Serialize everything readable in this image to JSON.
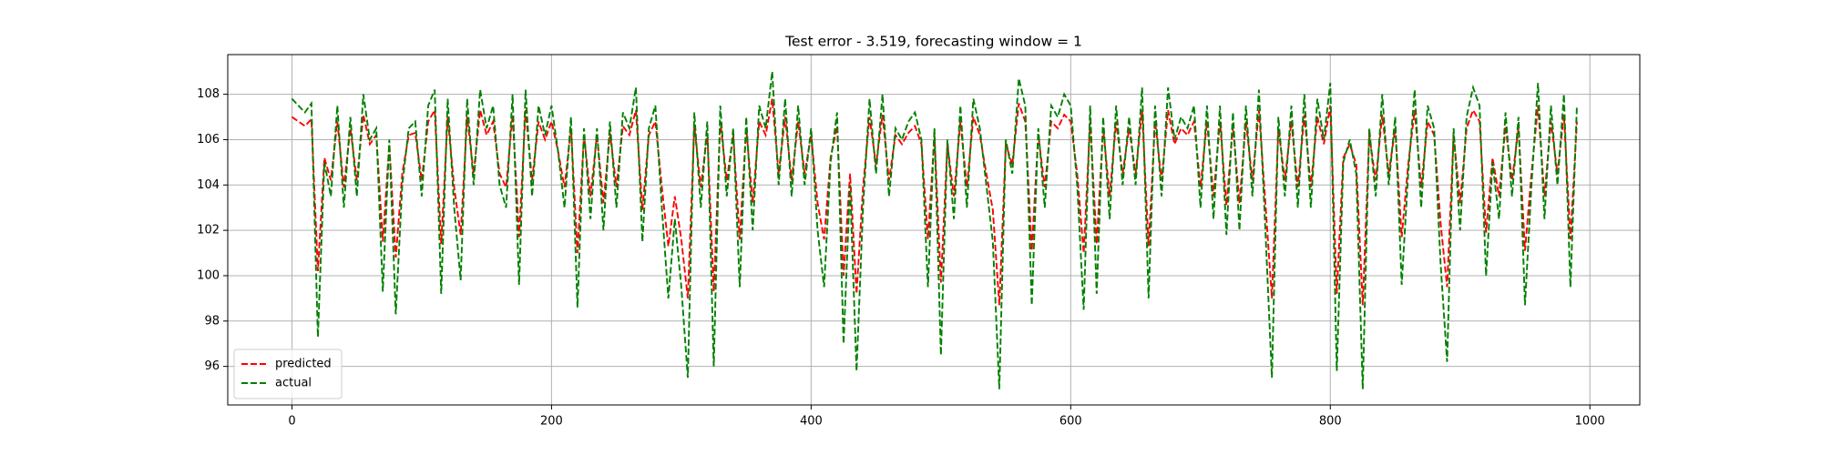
{
  "chart_data": {
    "type": "line",
    "title": "Test error - 3.519, forecasting window = 1",
    "x": [
      0,
      5,
      10,
      15,
      20,
      25,
      30,
      35,
      40,
      45,
      50,
      55,
      60,
      65,
      70,
      75,
      80,
      85,
      90,
      95,
      100,
      105,
      110,
      115,
      120,
      125,
      130,
      135,
      140,
      145,
      150,
      155,
      160,
      165,
      170,
      175,
      180,
      185,
      190,
      195,
      200,
      205,
      210,
      215,
      220,
      225,
      230,
      235,
      240,
      245,
      250,
      255,
      260,
      265,
      270,
      275,
      280,
      285,
      290,
      295,
      300,
      305,
      310,
      315,
      320,
      325,
      330,
      335,
      340,
      345,
      350,
      355,
      360,
      365,
      370,
      375,
      380,
      385,
      390,
      395,
      400,
      405,
      410,
      415,
      420,
      425,
      430,
      435,
      440,
      445,
      450,
      455,
      460,
      465,
      470,
      475,
      480,
      485,
      490,
      495,
      500,
      505,
      510,
      515,
      520,
      525,
      530,
      535,
      540,
      545,
      550,
      555,
      560,
      565,
      570,
      575,
      580,
      585,
      590,
      595,
      600,
      605,
      610,
      615,
      620,
      625,
      630,
      635,
      640,
      645,
      650,
      655,
      660,
      665,
      670,
      675,
      680,
      685,
      690,
      695,
      700,
      705,
      710,
      715,
      720,
      725,
      730,
      735,
      740,
      745,
      750,
      755,
      760,
      765,
      770,
      775,
      780,
      785,
      790,
      795,
      800,
      805,
      810,
      815,
      820,
      825,
      830,
      835,
      840,
      845,
      850,
      855,
      860,
      865,
      870,
      875,
      880,
      885,
      890,
      895,
      900,
      905,
      910,
      915,
      920,
      925,
      930,
      935,
      940,
      945,
      950,
      955,
      960,
      965,
      970,
      975,
      980,
      985,
      990
    ],
    "series": [
      {
        "name": "predicted",
        "color": "#ff0000",
        "values": [
          107.0,
          106.8,
          106.6,
          106.9,
          100.2,
          105.2,
          104.2,
          106.8,
          103.9,
          106.5,
          104.2,
          107.1,
          105.8,
          106.2,
          101.5,
          105.8,
          100.8,
          104.5,
          106.2,
          106.3,
          104.2,
          106.8,
          107.3,
          101.4,
          107.0,
          103.9,
          101.8,
          107.0,
          104.5,
          107.3,
          106.2,
          106.8,
          104.5,
          103.9,
          107.1,
          101.7,
          107.3,
          104.2,
          106.8,
          106.0,
          106.8,
          105.5,
          103.9,
          106.5,
          101.0,
          106.2,
          103.5,
          106.2,
          103.2,
          106.3,
          103.9,
          106.6,
          106.2,
          107.3,
          102.9,
          106.2,
          106.8,
          103.9,
          101.3,
          103.5,
          101.6,
          99.0,
          106.6,
          103.9,
          106.3,
          99.3,
          106.8,
          104.2,
          106.2,
          101.6,
          106.5,
          103.2,
          106.8,
          106.2,
          107.8,
          104.5,
          107.0,
          104.2,
          106.8,
          104.5,
          106.2,
          103.2,
          101.6,
          105.2,
          106.6,
          100.0,
          104.5,
          99.2,
          103.9,
          107.0,
          104.9,
          107.1,
          104.2,
          106.2,
          105.8,
          106.3,
          106.6,
          105.8,
          101.6,
          106.2,
          99.7,
          105.8,
          103.5,
          106.8,
          103.9,
          107.0,
          106.2,
          104.5,
          102.9,
          98.7,
          105.8,
          104.9,
          107.6,
          106.8,
          101.1,
          106.2,
          103.9,
          106.8,
          106.5,
          107.1,
          106.8,
          104.5,
          101.0,
          106.8,
          101.4,
          106.5,
          103.5,
          106.8,
          104.5,
          106.5,
          104.5,
          107.3,
          101.3,
          106.8,
          104.2,
          107.3,
          105.8,
          106.5,
          106.2,
          106.8,
          103.9,
          106.8,
          103.5,
          106.8,
          103.1,
          106.6,
          103.2,
          106.8,
          104.2,
          107.3,
          103.2,
          99.0,
          106.5,
          104.2,
          106.8,
          103.9,
          107.1,
          103.9,
          107.0,
          105.8,
          107.5,
          99.2,
          105.2,
          105.8,
          104.9,
          98.7,
          106.2,
          104.2,
          107.1,
          104.5,
          106.5,
          101.7,
          104.9,
          107.3,
          103.9,
          106.8,
          106.2,
          102.3,
          99.5,
          106.2,
          103.2,
          106.5,
          107.3,
          106.8,
          101.9,
          105.2,
          103.5,
          106.6,
          104.2,
          106.5,
          101.1,
          104.5,
          107.5,
          103.5,
          106.8,
          104.5,
          107.1,
          101.6,
          106.8
        ]
      },
      {
        "name": "actual",
        "color": "#008000",
        "values": [
          107.8,
          107.5,
          107.2,
          107.6,
          97.3,
          105,
          103.5,
          107.5,
          103,
          107,
          103.5,
          108,
          106,
          106.5,
          99.3,
          106,
          98.3,
          104,
          106.5,
          106.8,
          103.5,
          107.5,
          108.2,
          99.2,
          107.8,
          103,
          99.8,
          107.8,
          104,
          108.2,
          106.5,
          107.5,
          104,
          103,
          108,
          99.6,
          108.2,
          103.5,
          107.5,
          106.2,
          107.5,
          105.5,
          103,
          107,
          98.6,
          106.5,
          102.5,
          106.5,
          102,
          106.8,
          103,
          107.2,
          106.5,
          108.3,
          101.5,
          106.5,
          107.5,
          103,
          99,
          102.5,
          99.5,
          95.5,
          107.2,
          103,
          106.8,
          96,
          107.5,
          103.5,
          106.5,
          99.5,
          107,
          102,
          107.5,
          106.5,
          109,
          104,
          107.8,
          103.5,
          107.5,
          104,
          106.5,
          102,
          99.5,
          105,
          107.2,
          97,
          104,
          95.8,
          103,
          107.8,
          104.5,
          108,
          103.5,
          106.5,
          106,
          106.8,
          107.2,
          106,
          99.5,
          106.5,
          96.5,
          106,
          102.5,
          107.5,
          103,
          107.8,
          106.5,
          104,
          101.5,
          95,
          106,
          104.5,
          108.7,
          107.5,
          98.7,
          106.5,
          103,
          107.5,
          107,
          108,
          107.5,
          104,
          98.5,
          107.5,
          99.2,
          107,
          102.5,
          107.5,
          104,
          107,
          104,
          108.3,
          99,
          107.5,
          103.5,
          108.3,
          106,
          107,
          106.5,
          107.5,
          103,
          107.5,
          102.5,
          107.5,
          101.8,
          107.2,
          102,
          107.5,
          103.5,
          108.2,
          102,
          95.5,
          107,
          103.5,
          107.5,
          103,
          108,
          103,
          107.8,
          106,
          108.5,
          95.8,
          105,
          106,
          104.5,
          95,
          106.5,
          103.5,
          108,
          104,
          107,
          99.6,
          104.5,
          108.2,
          103,
          107.5,
          106.5,
          100.5,
          96.2,
          106.5,
          102,
          107,
          108.3,
          107.5,
          100,
          105,
          102.5,
          107.2,
          103.5,
          107,
          98.7,
          104,
          108.5,
          102.5,
          107.5,
          104,
          108,
          99.5,
          107.5
        ]
      }
    ],
    "xlim": [
      -49.45,
      1038.45
    ],
    "ylim": [
      94.3,
      109.75
    ],
    "xticks": [
      0,
      200,
      400,
      600,
      800,
      1000
    ],
    "yticks": [
      96,
      98,
      100,
      102,
      104,
      106,
      108
    ],
    "grid": true,
    "legend": "lower left",
    "line_style": "dashed"
  }
}
